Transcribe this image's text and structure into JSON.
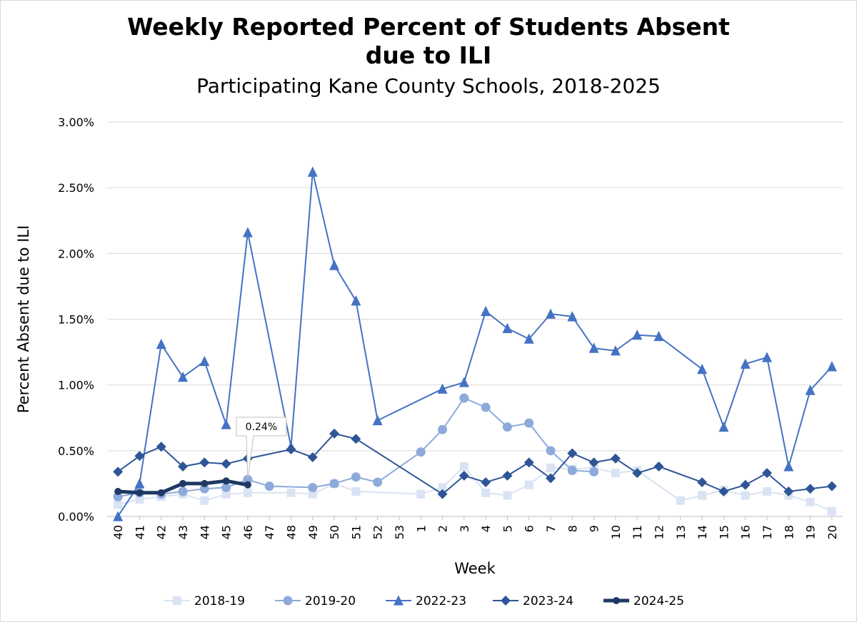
{
  "chart_data": {
    "type": "line",
    "title": "Weekly Reported Percent of Students Absent due to ILI",
    "subtitle": "Participating Kane County Schools, 2018-2025",
    "xlabel": "Week",
    "ylabel": "Percent Absent due to ILI",
    "ylim": [
      0,
      3.0
    ],
    "yticks": [
      "0.00%",
      "0.50%",
      "1.00%",
      "1.50%",
      "2.00%",
      "2.50%",
      "3.00%"
    ],
    "grid": true,
    "legend_position": "bottom",
    "x": [
      "40",
      "41",
      "42",
      "43",
      "44",
      "45",
      "46",
      "47",
      "48",
      "49",
      "50",
      "51",
      "52",
      "53",
      "1",
      "2",
      "3",
      "4",
      "5",
      "6",
      "7",
      "8",
      "9",
      "10",
      "11",
      "12",
      "13",
      "14",
      "15",
      "16",
      "17",
      "18",
      "19",
      "20"
    ],
    "series": [
      {
        "name": "2018-19",
        "color": "#dae3f3",
        "marker": "square",
        "values": [
          0.09,
          0.13,
          0.15,
          0.17,
          0.12,
          0.17,
          0.18,
          null,
          0.18,
          0.17,
          0.25,
          0.19,
          null,
          null,
          0.17,
          0.22,
          0.38,
          0.18,
          0.16,
          0.24,
          0.37,
          0.36,
          0.37,
          0.33,
          0.35,
          null,
          0.12,
          0.16,
          0.2,
          0.16,
          0.19,
          0.16,
          0.11,
          0.04
        ]
      },
      {
        "name": "2019-20",
        "color": "#8eaadb",
        "marker": "circle",
        "values": [
          0.15,
          0.18,
          0.17,
          0.19,
          0.21,
          0.22,
          0.28,
          0.23,
          null,
          0.22,
          0.25,
          0.3,
          0.26,
          null,
          0.49,
          0.66,
          0.9,
          0.83,
          0.68,
          0.71,
          0.5,
          0.35,
          0.34,
          null,
          null,
          null,
          null,
          null,
          null,
          null,
          null,
          null,
          null,
          null
        ]
      },
      {
        "name": "2022-23",
        "color": "#4472c4",
        "marker": "triangle",
        "values": [
          0.0,
          0.25,
          1.31,
          1.06,
          1.18,
          0.7,
          2.16,
          null,
          0.53,
          2.62,
          1.91,
          1.64,
          0.73,
          null,
          null,
          0.97,
          1.02,
          1.56,
          1.43,
          1.35,
          1.54,
          1.52,
          1.28,
          1.26,
          1.38,
          1.37,
          null,
          1.12,
          0.68,
          1.16,
          1.21,
          0.38,
          0.96,
          1.14
        ]
      },
      {
        "name": "2023-24",
        "color": "#2f5597",
        "marker": "diamond",
        "values": [
          0.34,
          0.46,
          0.53,
          0.38,
          0.41,
          0.4,
          0.44,
          null,
          0.51,
          0.45,
          0.63,
          0.59,
          null,
          null,
          null,
          0.17,
          0.31,
          0.26,
          0.31,
          0.41,
          0.29,
          0.48,
          0.41,
          0.44,
          0.33,
          0.38,
          null,
          0.26,
          0.19,
          0.24,
          0.33,
          0.19,
          0.21,
          0.23
        ]
      },
      {
        "name": "2024-25",
        "color": "#1f3864",
        "marker": "circle",
        "values": [
          0.19,
          0.18,
          0.18,
          0.25,
          0.25,
          0.27,
          0.24,
          null,
          null,
          null,
          null,
          null,
          null,
          null,
          null,
          null,
          null,
          null,
          null,
          null,
          null,
          null,
          null,
          null,
          null,
          null,
          null,
          null,
          null,
          null,
          null,
          null,
          null,
          null
        ]
      }
    ],
    "annotations": [
      {
        "series": "2024-25",
        "x": "46",
        "text": "0.24%"
      }
    ]
  }
}
